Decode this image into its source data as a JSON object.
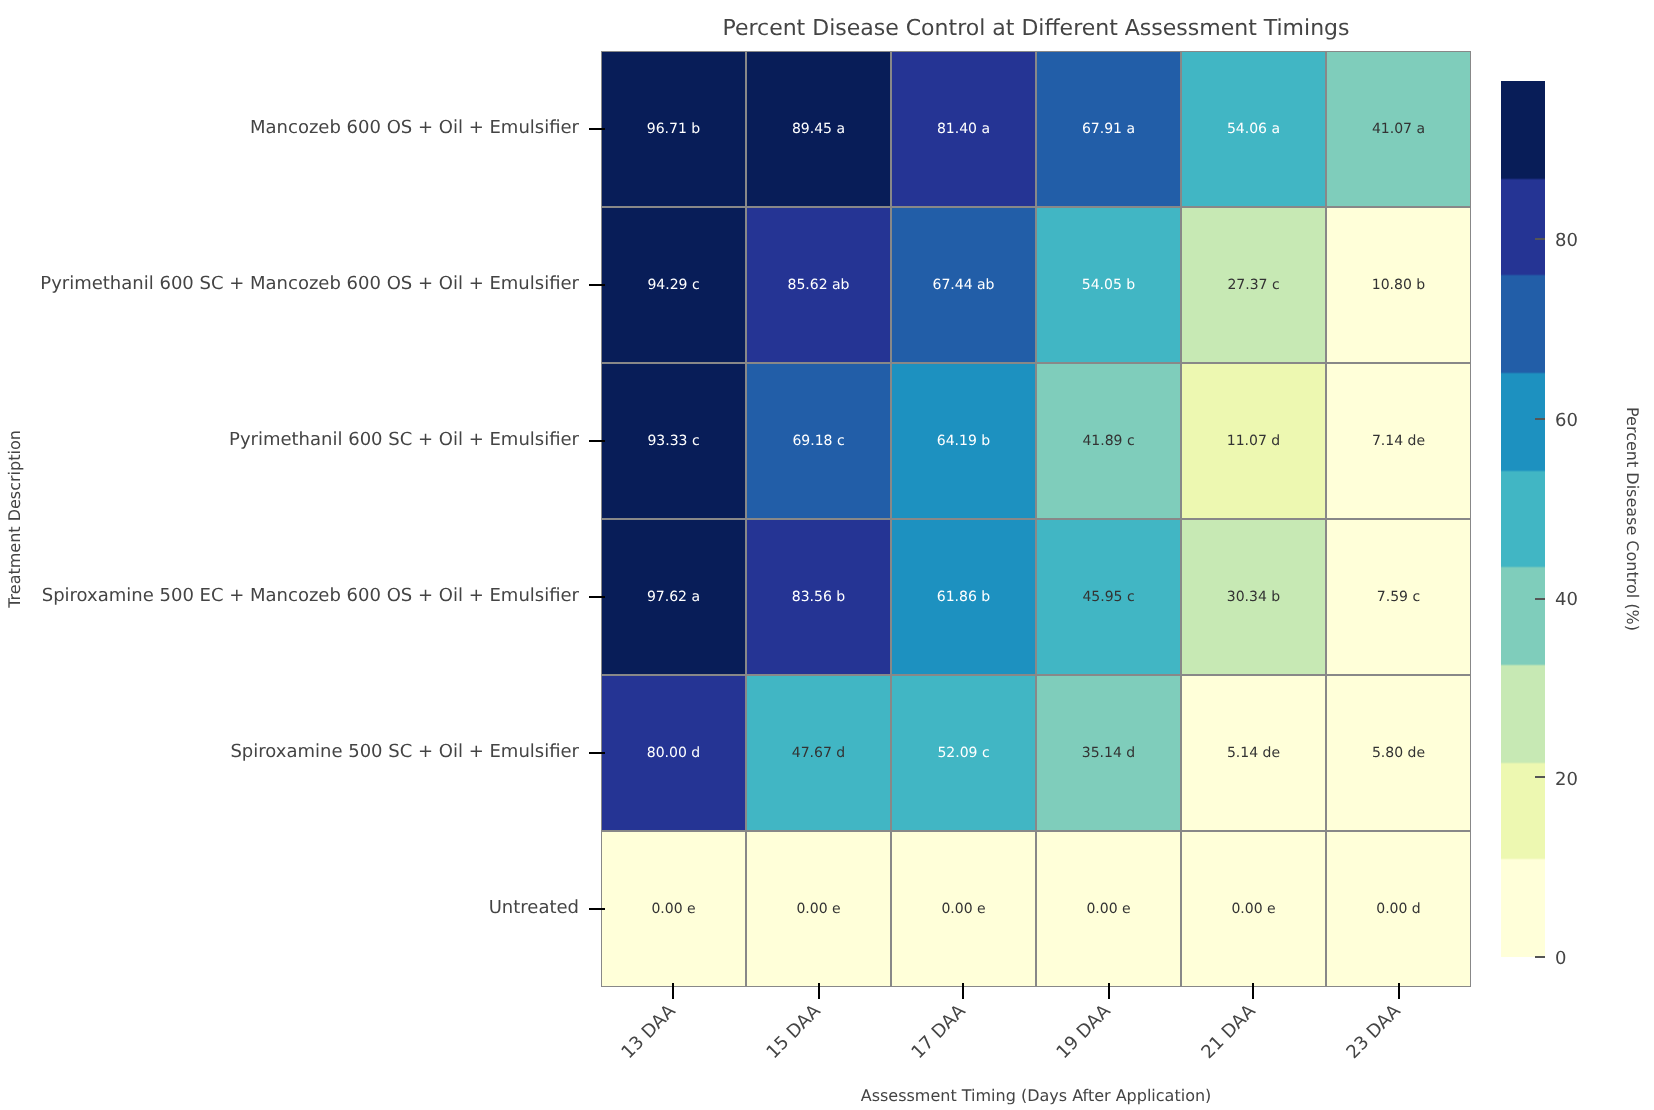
{
  "chart_data": {
    "type": "heatmap",
    "title": "Percent Disease Control at Different Assessment Timings",
    "xlabel": "Assessment Timing (Days After Application)",
    "ylabel": "Treatment Description",
    "clabel": "Percent Disease Control (%)",
    "categories": [
      "13 DAA",
      "15 DAA",
      "17 DAA",
      "19 DAA",
      "21 DAA",
      "23 DAA"
    ],
    "y_categories": [
      "Mancozeb 600 OS + Oil + Emulsifier",
      "Pyrimethanil 600 SC + Mancozeb 600 OS + Oil + Emulsifier",
      "Pyrimethanil 600 SC + Oil + Emulsifier",
      "Spiroxamine 500 EC + Mancozeb 600 OS + Oil + Emulsifier",
      "Spiroxamine 500 SC + Oil + Emulsifier",
      "Untreated"
    ],
    "cells": [
      [
        96.71,
        89.45,
        81.4,
        67.91,
        54.06,
        41.07
      ],
      [
        94.29,
        85.62,
        67.44,
        54.05,
        27.37,
        10.8
      ],
      [
        93.33,
        69.18,
        64.19,
        41.89,
        11.07,
        7.14
      ],
      [
        97.62,
        83.56,
        61.86,
        45.95,
        30.34,
        7.59
      ],
      [
        80.0,
        47.67,
        52.09,
        35.14,
        5.14,
        5.8
      ],
      [
        0.0,
        0.0,
        0.0,
        0.0,
        0.0,
        0.0
      ]
    ],
    "cell_labels": [
      [
        "96.71 b",
        "89.45 a",
        "81.40 a",
        "67.91 a",
        "54.06 a",
        "41.07 a"
      ],
      [
        "94.29 c",
        "85.62 ab",
        "67.44 ab",
        "54.05 b",
        "27.37 c",
        "10.80 b"
      ],
      [
        "93.33 c",
        "69.18 c",
        "64.19 b",
        "41.89 c",
        "11.07 d",
        "7.14 de"
      ],
      [
        "97.62 a",
        "83.56 b",
        "61.86 b",
        "45.95 c",
        "30.34 b",
        "7.59 c"
      ],
      [
        "80.00 d",
        "47.67 d",
        "52.09 c",
        "35.14 d",
        "5.14 de",
        "5.80 de"
      ],
      [
        "0.00 e",
        "0.00 e",
        "0.00 e",
        "0.00 e",
        "0.00 e",
        "0.00 d"
      ]
    ],
    "clim": [
      0,
      97.62
    ],
    "cticks": [
      0,
      20,
      40,
      60,
      80
    ]
  }
}
